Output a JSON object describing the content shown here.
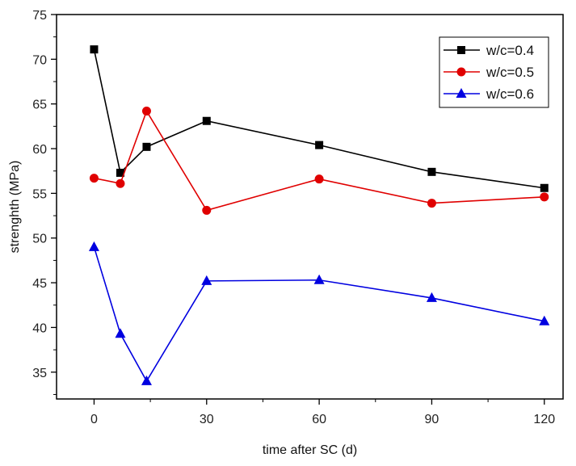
{
  "chart_data": {
    "type": "line",
    "title": "",
    "xlabel": "time after SC (d)",
    "ylabel": "strenghth (MPa)",
    "xlim": [
      -10,
      125
    ],
    "ylim": [
      32,
      75
    ],
    "xticks": [
      0,
      30,
      60,
      90,
      120
    ],
    "xtick_labels": [
      "0",
      "30",
      "60",
      "90",
      "120"
    ],
    "yticks": [
      35,
      40,
      45,
      50,
      55,
      60,
      65,
      70,
      75
    ],
    "ytick_labels": [
      "35",
      "40",
      "45",
      "50",
      "55",
      "60",
      "65",
      "70",
      "75"
    ],
    "grid": false,
    "legend_position": "top-right",
    "series": [
      {
        "name": "w/c=0.4",
        "color": "#000000",
        "marker": "square",
        "x": [
          0,
          7,
          14,
          30,
          60,
          90,
          120
        ],
        "values": [
          71.1,
          57.3,
          60.2,
          63.1,
          60.4,
          57.4,
          55.6
        ]
      },
      {
        "name": "w/c=0.5",
        "color": "#e00000",
        "marker": "circle",
        "x": [
          0,
          7,
          14,
          30,
          60,
          90,
          120
        ],
        "values": [
          56.7,
          56.1,
          64.2,
          53.1,
          56.6,
          53.9,
          54.6
        ]
      },
      {
        "name": "w/c=0.6",
        "color": "#0000e0",
        "marker": "triangle",
        "x": [
          0,
          7,
          14,
          30,
          60,
          90,
          120
        ],
        "values": [
          49.0,
          39.3,
          34.0,
          45.2,
          45.3,
          43.3,
          40.7
        ]
      }
    ]
  }
}
